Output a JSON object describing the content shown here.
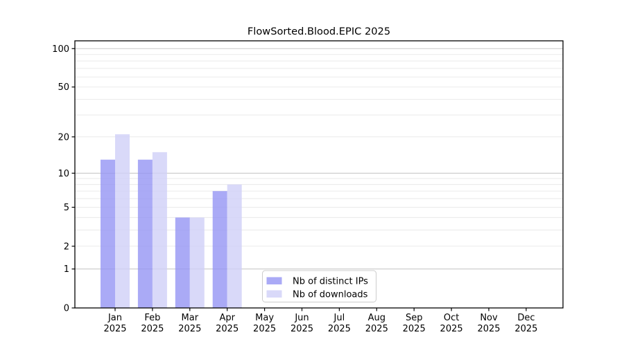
{
  "title": "FlowSorted.Blood.EPIC 2025",
  "chart_data": {
    "type": "bar",
    "title": "FlowSorted.Blood.EPIC 2025",
    "categories": [
      "Jan",
      "Feb",
      "Mar",
      "Apr",
      "May",
      "Jun",
      "Jul",
      "Aug",
      "Sep",
      "Oct",
      "Nov",
      "Dec"
    ],
    "year_label": "2025",
    "series": [
      {
        "name": "Nb of distinct IPs",
        "color": "#aaaaf6",
        "values": [
          13,
          13,
          4,
          7,
          0,
          0,
          0,
          0,
          0,
          0,
          0,
          0
        ]
      },
      {
        "name": "Nb of downloads",
        "color": "#d9d9f9",
        "values": [
          21,
          15,
          4,
          8,
          0,
          0,
          0,
          0,
          0,
          0,
          0,
          0
        ]
      }
    ],
    "xlabel": "",
    "ylabel": "",
    "yscale": "log1p",
    "ylim": [
      0,
      115
    ],
    "yticks": [
      0,
      1,
      2,
      5,
      10,
      20,
      50,
      100
    ],
    "major_gridlines": [
      1,
      10,
      100
    ],
    "minor_gridlines": [
      2,
      3,
      4,
      5,
      6,
      7,
      8,
      9,
      20,
      30,
      40,
      50,
      60,
      70,
      80,
      90
    ],
    "grid": true,
    "legend_position": "lower center",
    "legend_labels": [
      "Nb of distinct IPs",
      "Nb of downloads"
    ]
  },
  "colors": {
    "background": "#ffffff",
    "axis": "#000000",
    "major_grid": "#c8c8c8",
    "minor_grid": "#eaeaea",
    "legend_border": "#cccccc",
    "legend_fill": "#ffffff"
  }
}
